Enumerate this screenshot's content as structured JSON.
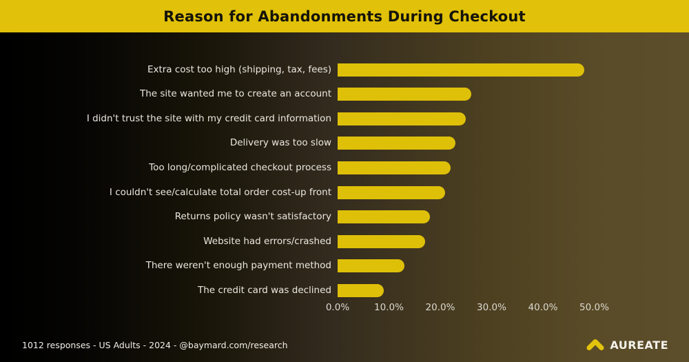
{
  "header": {
    "title": "Reason for Abandonments During Checkout"
  },
  "chart_data": {
    "type": "bar",
    "orientation": "horizontal",
    "title": "Reason for Abandonments During Checkout",
    "categories": [
      "Extra cost too high (shipping, tax, fees)",
      "The site wanted me to create an account",
      "I didn't trust the site with my credit card information",
      "Delivery was too slow",
      "Too long/complicated checkout process",
      "I couldn't see/calculate total order cost-up front",
      "Returns policy wasn't satisfactory",
      "Website had errors/crashed",
      "There weren't enough payment method",
      "The credit card was declined"
    ],
    "values": [
      48,
      26,
      25,
      23,
      22,
      21,
      18,
      17,
      13,
      9
    ],
    "value_unit": "%",
    "xlabel": "",
    "ylabel": "",
    "xlim": [
      0,
      55
    ],
    "x_tick_values": [
      0,
      10,
      20,
      30,
      40,
      50
    ],
    "x_tick_labels": [
      "0.0%",
      "10.0%",
      "20.0%",
      "30.0%",
      "40.0%",
      "50.0%"
    ],
    "grid": false,
    "legend": null,
    "bar_color": "#dfc009"
  },
  "footer": {
    "source_note": "1012 responses - US Adults - 2024 - @baymard.com/research",
    "brand": {
      "name": "AUREATE",
      "icon": "chevron-up-icon",
      "icon_color": "#e3c30b"
    }
  },
  "colors": {
    "accent_yellow": "#e1c109",
    "background_left": "#000000",
    "background_right": "#5c4e2b",
    "label_text": "#ece8e0",
    "title_text": "#15130a"
  }
}
